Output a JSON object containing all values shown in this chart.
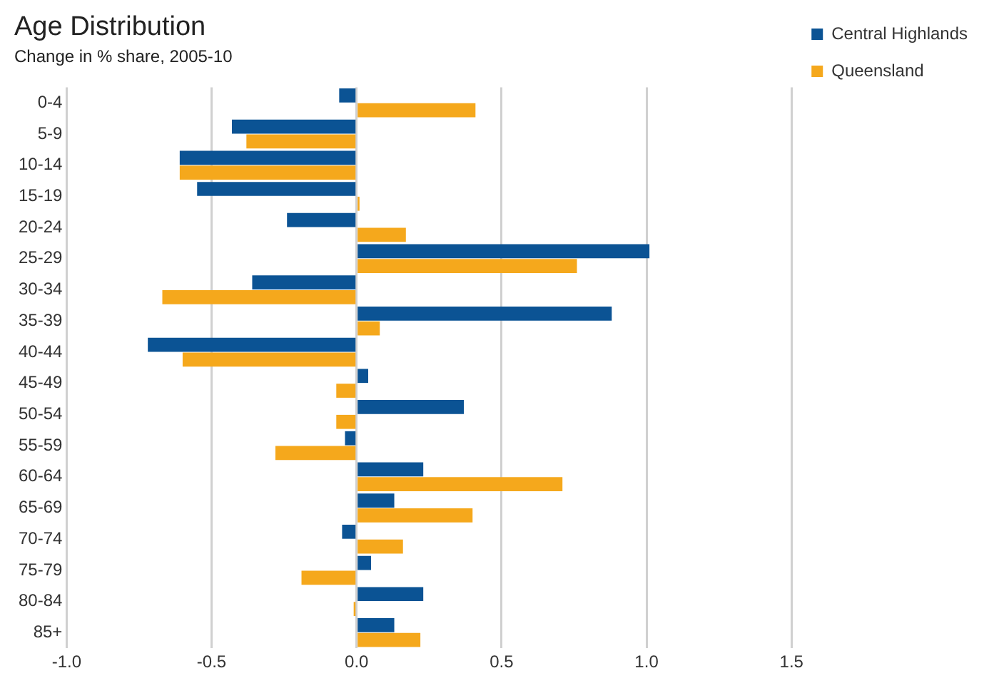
{
  "chart_data": {
    "type": "bar",
    "orientation": "horizontal",
    "title": "Age Distribution",
    "subtitle": "Change in % share, 2005-10",
    "categories": [
      "0-4",
      "5-9",
      "10-14",
      "15-19",
      "20-24",
      "25-29",
      "30-34",
      "35-39",
      "40-44",
      "45-49",
      "50-54",
      "55-59",
      "60-64",
      "65-69",
      "70-74",
      "75-79",
      "80-84",
      "85+"
    ],
    "series": [
      {
        "name": "Central Highlands",
        "color": "#0b5394",
        "values": [
          -0.06,
          -0.43,
          -0.61,
          -0.55,
          -0.24,
          1.01,
          -0.36,
          0.88,
          -0.72,
          0.04,
          0.37,
          -0.04,
          0.23,
          0.13,
          -0.05,
          0.05,
          0.23,
          0.13
        ]
      },
      {
        "name": "Queensland",
        "color": "#f5a81c",
        "values": [
          0.41,
          -0.38,
          -0.61,
          0.01,
          0.17,
          0.76,
          -0.67,
          0.08,
          -0.6,
          -0.07,
          -0.07,
          -0.28,
          0.71,
          0.4,
          0.16,
          -0.19,
          -0.01,
          0.22
        ]
      }
    ],
    "xlim": [
      -1,
      1.5
    ],
    "xticks": [
      {
        "value": -1,
        "label": "-1.0"
      },
      {
        "value": -0.5,
        "label": "-0.5"
      },
      {
        "value": 0,
        "label": "0.0"
      },
      {
        "value": 0.5,
        "label": "0.5"
      },
      {
        "value": 1,
        "label": "1.0"
      },
      {
        "value": 1.5,
        "label": "1.5"
      }
    ],
    "grid": "x",
    "legend": "top right"
  }
}
